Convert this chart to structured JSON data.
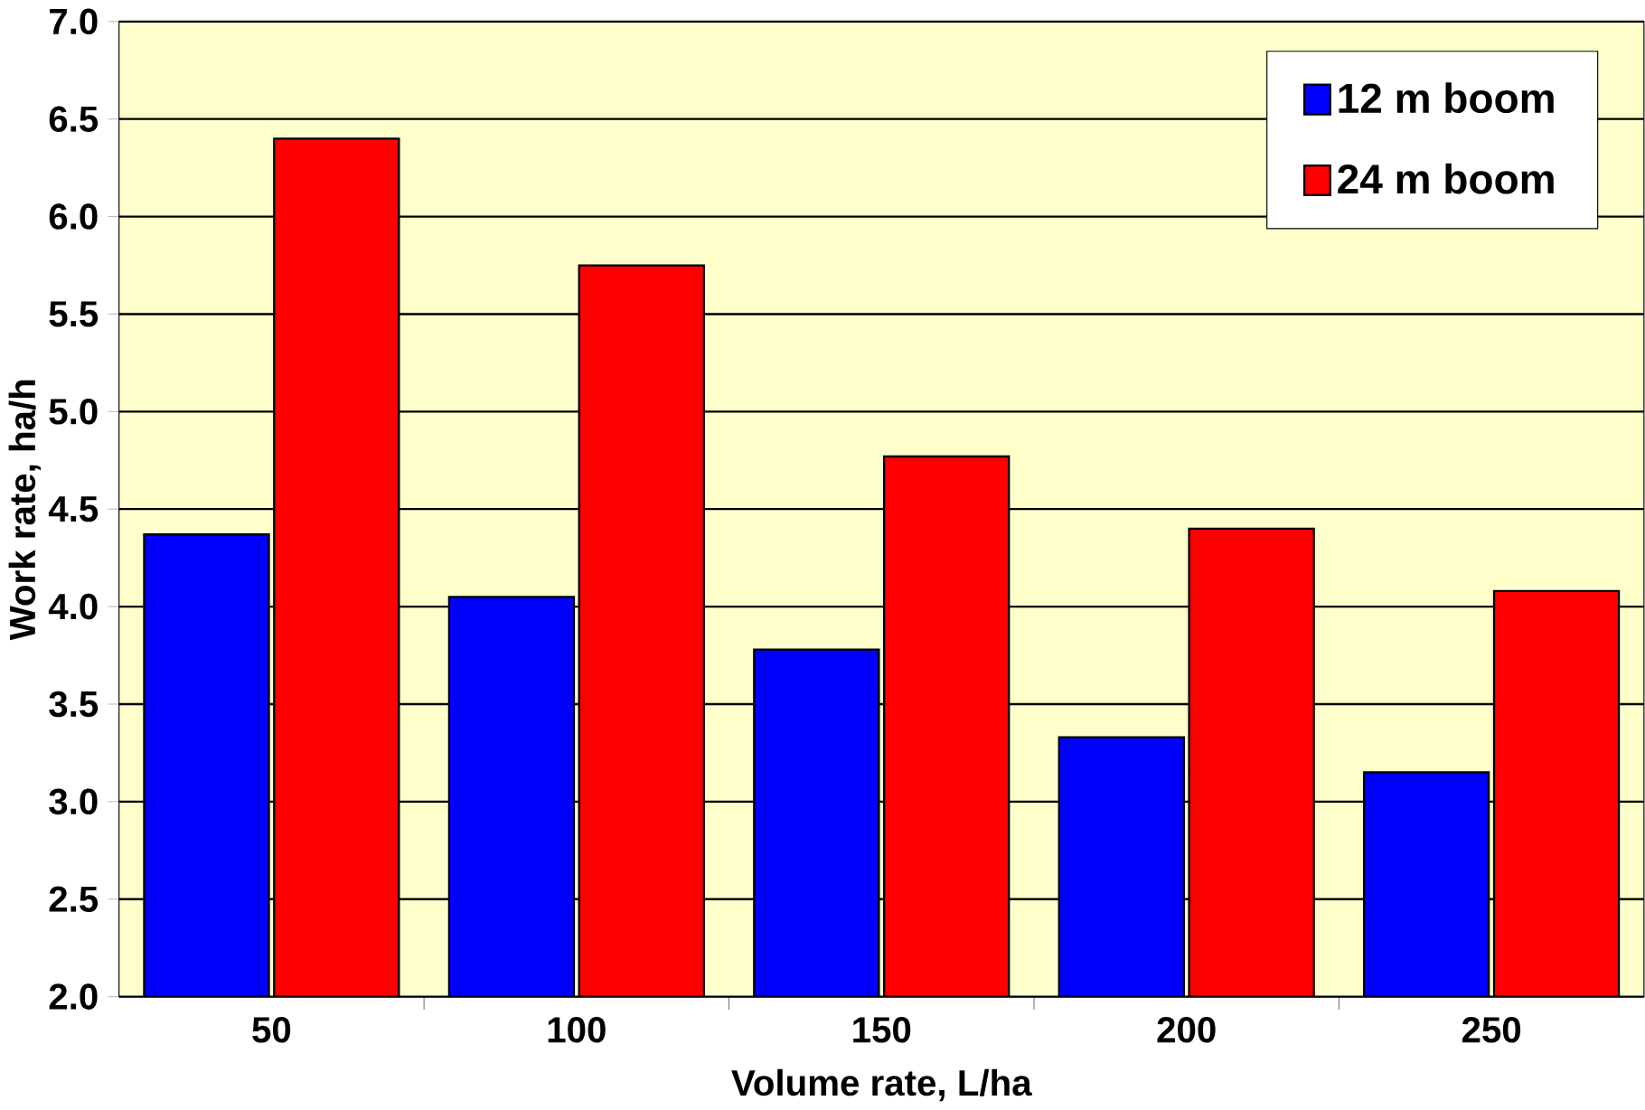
{
  "chart_data": {
    "type": "bar",
    "xlabel": "Volume rate, L/ha",
    "ylabel": "Work rate, ha/h",
    "categories": [
      "50",
      "100",
      "150",
      "200",
      "250"
    ],
    "series": [
      {
        "name": "12 m boom",
        "color": "#0000ff",
        "values": [
          4.37,
          4.05,
          3.78,
          3.33,
          3.15
        ]
      },
      {
        "name": "24 m boom",
        "color": "#ff0000",
        "values": [
          6.4,
          5.75,
          4.77,
          4.4,
          4.08
        ]
      }
    ],
    "ylim": [
      2.0,
      7.0
    ],
    "yticks": [
      {
        "value": 2.0,
        "label": "2.0"
      },
      {
        "value": 2.5,
        "label": "2.5"
      },
      {
        "value": 3.0,
        "label": "3.0"
      },
      {
        "value": 3.5,
        "label": "3.5"
      },
      {
        "value": 4.0,
        "label": "4.0"
      },
      {
        "value": 4.5,
        "label": "4.5"
      },
      {
        "value": 5.0,
        "label": "5.0"
      },
      {
        "value": 5.5,
        "label": "5.5"
      },
      {
        "value": 6.0,
        "label": "6.0"
      },
      {
        "value": 6.5,
        "label": "6.5"
      },
      {
        "value": 7.0,
        "label": "7.0"
      }
    ],
    "grid": "y",
    "legend": "top right"
  }
}
